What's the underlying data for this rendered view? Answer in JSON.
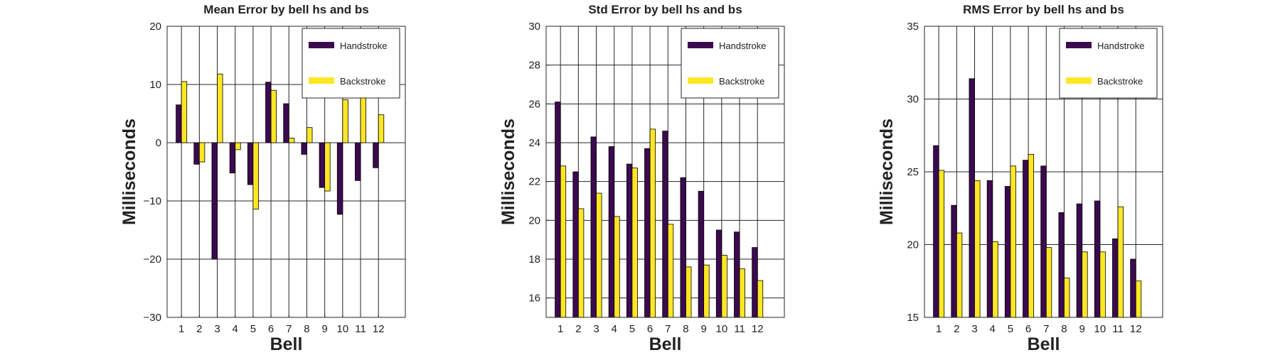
{
  "chart_data": [
    {
      "type": "bar",
      "title": "Mean Error by bell hs and bs",
      "xlabel": "Bell",
      "ylabel": "Milliseconds",
      "categories": [
        "1",
        "2",
        "3",
        "4",
        "5",
        "6",
        "7",
        "8",
        "9",
        "10",
        "11",
        "12"
      ],
      "xlim": [
        0.2,
        13.5
      ],
      "ylim": [
        -30,
        20
      ],
      "yticks": [
        -30,
        -20,
        -10,
        0,
        10,
        20
      ],
      "ytick_labels": [
        "−30",
        "−20",
        "−10",
        "0",
        "10",
        "20"
      ],
      "grid": true,
      "legend_position": "top-right",
      "series": [
        {
          "name": "Handstroke",
          "color": "#3b0a4f",
          "values": [
            6.5,
            -3.7,
            -20,
            -5.2,
            -7.2,
            10.4,
            6.7,
            -2,
            -7.7,
            -12.3,
            -6.5,
            -4.3
          ]
        },
        {
          "name": "Backstroke",
          "color": "#fde725",
          "values": [
            10.5,
            -3.3,
            11.8,
            -1.2,
            -11.4,
            9,
            0.8,
            2.6,
            -8.3,
            7.4,
            14.4,
            4.8
          ]
        }
      ]
    },
    {
      "type": "bar",
      "title": "Std Error by bell hs and bs",
      "xlabel": "Bell",
      "ylabel": "Milliseconds",
      "categories": [
        "1",
        "2",
        "3",
        "4",
        "5",
        "6",
        "7",
        "8",
        "9",
        "10",
        "11",
        "12"
      ],
      "xlim": [
        0.2,
        13.5
      ],
      "ylim": [
        15,
        30
      ],
      "yticks": [
        16,
        18,
        20,
        22,
        24,
        26,
        28,
        30
      ],
      "ytick_labels": [
        "16",
        "18",
        "20",
        "22",
        "24",
        "26",
        "28",
        "30"
      ],
      "grid": true,
      "legend_position": "top-right",
      "series": [
        {
          "name": "Handstroke",
          "color": "#3b0a4f",
          "values": [
            26.1,
            22.5,
            24.3,
            23.8,
            22.9,
            23.7,
            24.6,
            22.2,
            21.5,
            19.5,
            19.4,
            18.6
          ]
        },
        {
          "name": "Backstroke",
          "color": "#fde725",
          "values": [
            22.8,
            20.6,
            21.4,
            20.2,
            22.7,
            24.7,
            19.8,
            17.6,
            17.7,
            18.2,
            17.5,
            16.9
          ]
        }
      ]
    },
    {
      "type": "bar",
      "title": "RMS Error by bell hs and bs",
      "xlabel": "Bell",
      "ylabel": "Milliseconds",
      "categories": [
        "1",
        "2",
        "3",
        "4",
        "5",
        "6",
        "7",
        "8",
        "9",
        "10",
        "11",
        "12"
      ],
      "xlim": [
        0.2,
        13.5
      ],
      "ylim": [
        15,
        35
      ],
      "yticks": [
        15,
        20,
        25,
        30,
        35
      ],
      "ytick_labels": [
        "15",
        "20",
        "25",
        "30",
        "35"
      ],
      "grid": true,
      "legend_position": "top-right",
      "series": [
        {
          "name": "Handstroke",
          "color": "#3b0a4f",
          "values": [
            26.8,
            22.7,
            31.4,
            24.4,
            24,
            25.8,
            25.4,
            22.2,
            22.8,
            23,
            20.4,
            19
          ]
        },
        {
          "name": "Backstroke",
          "color": "#fde725",
          "values": [
            25.1,
            20.8,
            24.4,
            20.2,
            25.4,
            26.2,
            19.8,
            17.7,
            19.5,
            19.5,
            22.6,
            17.5
          ]
        }
      ]
    }
  ]
}
